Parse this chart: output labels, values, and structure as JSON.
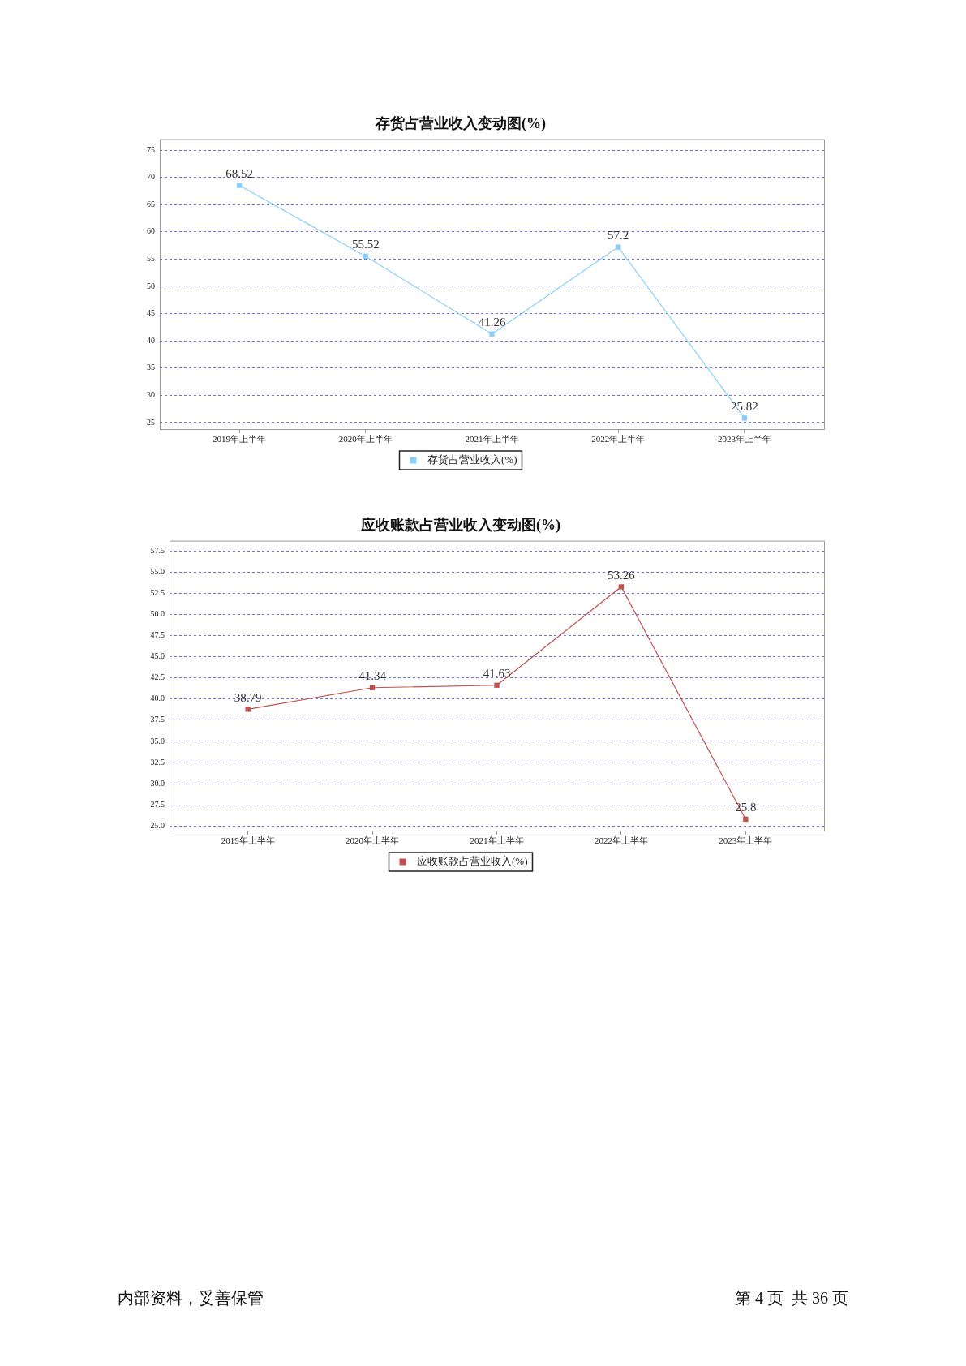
{
  "chart_data": [
    {
      "type": "line",
      "title": "存货占营业收入变动图(%)",
      "categories": [
        "2019年上半年",
        "2020年上半年",
        "2021年上半年",
        "2022年上半年",
        "2023年上半年"
      ],
      "series": [
        {
          "name": "存货占营业收入(%)",
          "color": "#87cefa",
          "values": [
            68.52,
            55.52,
            41.26,
            57.2,
            25.82
          ]
        }
      ],
      "ylim": [
        23.8,
        77
      ],
      "yticks": [
        25,
        30,
        35,
        40,
        45,
        50,
        55,
        60,
        65,
        70,
        75
      ],
      "grid": "y",
      "legend": "bottom",
      "marker": "square",
      "data_labels": true
    },
    {
      "type": "line",
      "title": "应收账款占营业收入变动图(%)",
      "categories": [
        "2019年上半年",
        "2020年上半年",
        "2021年上半年",
        "2022年上半年",
        "2023年上半年"
      ],
      "series": [
        {
          "name": "应收账款占营业收入(%)",
          "color": "#c0504d",
          "values": [
            38.79,
            41.34,
            41.63,
            53.26,
            25.8
          ]
        }
      ],
      "ylim": [
        24.45,
        58.7
      ],
      "yticks": [
        {
          "value": 25,
          "label": "25.0"
        },
        27.5,
        {
          "value": 30,
          "label": "30.0"
        },
        32.5,
        {
          "value": 35,
          "label": "35.0"
        },
        37.5,
        {
          "value": 40,
          "label": "40.0"
        },
        42.5,
        {
          "value": 45,
          "label": "45.0"
        },
        47.5,
        {
          "value": 50,
          "label": "50.0"
        },
        52.5,
        {
          "value": 55,
          "label": "55.0"
        },
        57.5
      ],
      "grid": "y",
      "legend": "bottom",
      "marker": "square",
      "data_labels": true,
      "annotations": [
        "内部资料，妥善保管",
        "第 4 页  共 36 页"
      ]
    }
  ]
}
